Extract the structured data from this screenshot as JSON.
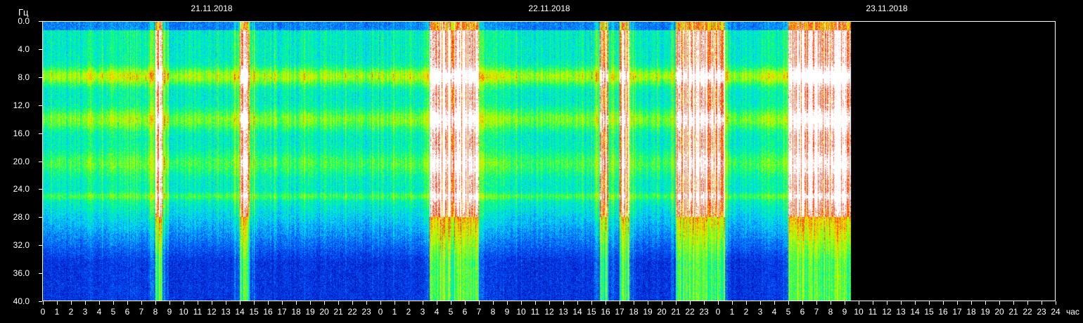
{
  "chart_data": {
    "type": "heatmap",
    "title": "",
    "ylabel": "Гц",
    "xlabel": "час",
    "dates": [
      "21.11.2018",
      "22.11.2018",
      "23.11.2018"
    ],
    "xlim_hours": [
      0,
      72
    ],
    "ylim_hz": [
      0.0,
      40.0
    ],
    "y_inverted": true,
    "y_ticks": [
      "0.0",
      "4.0",
      "8.0",
      "12.0",
      "16.0",
      "20.0",
      "24.0",
      "28.0",
      "32.0",
      "36.0",
      "40.0"
    ],
    "x_ticks": [
      "0",
      "1",
      "2",
      "3",
      "4",
      "5",
      "6",
      "7",
      "8",
      "9",
      "10",
      "11",
      "12",
      "13",
      "14",
      "15",
      "16",
      "17",
      "18",
      "19",
      "20",
      "21",
      "22",
      "23",
      "0",
      "1",
      "2",
      "3",
      "4",
      "5",
      "6",
      "7",
      "8",
      "9",
      "10",
      "11",
      "12",
      "13",
      "14",
      "15",
      "16",
      "17",
      "18",
      "19",
      "20",
      "21",
      "22",
      "23",
      "0",
      "1",
      "2",
      "3",
      "4",
      "5",
      "6",
      "7",
      "8",
      "9",
      "10",
      "11",
      "12",
      "13",
      "14",
      "15",
      "16",
      "17",
      "18",
      "19",
      "20",
      "21",
      "22",
      "23",
      "24"
    ],
    "data_end_hour": 57.5,
    "resonance_bands_hz": [
      7.8,
      14.0,
      20.3,
      25.0
    ],
    "high_intensity_intervals_hours": [
      [
        8.0,
        8.5
      ],
      [
        14.0,
        14.7
      ],
      [
        27.5,
        31.0
      ],
      [
        39.6,
        40.2
      ],
      [
        41.0,
        41.7
      ],
      [
        45.0,
        48.5
      ],
      [
        53.0,
        57.5
      ]
    ],
    "colormap": [
      "#000050",
      "#0018c8",
      "#0060ff",
      "#00d8ff",
      "#00ff80",
      "#a0ff00",
      "#ffe000",
      "#ff2000",
      "#ffffff"
    ]
  }
}
